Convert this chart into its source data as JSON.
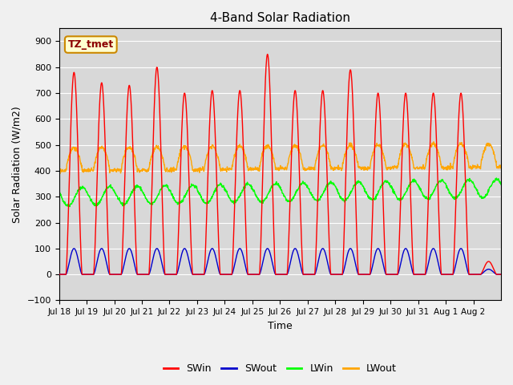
{
  "title": "4-Band Solar Radiation",
  "ylabel": "Solar Radiation (W/m2)",
  "xlabel": "Time",
  "annotation": "TZ_tmet",
  "ylim": [
    -100,
    950
  ],
  "yticks": [
    -100,
    0,
    100,
    200,
    300,
    400,
    500,
    600,
    700,
    800,
    900
  ],
  "xtick_labels": [
    "Jul 18",
    "Jul 19",
    "Jul 20",
    "Jul 21",
    "Jul 22",
    "Jul 23",
    "Jul 24",
    "Jul 25",
    "Jul 26",
    "Jul 27",
    "Jul 28",
    "Jul 29",
    "Jul 30",
    "Jul 31",
    "Aug 1",
    "Aug 2"
  ],
  "colors": {
    "SWin": "#ff0000",
    "SWout": "#0000cc",
    "LWin": "#00ff00",
    "LWout": "#ffa500"
  },
  "background_color": "#d8d8d8",
  "plot_bg_color": "#d8d8d8",
  "grid_color": "#ffffff",
  "n_days": 16,
  "SWin_peaks": [
    780,
    740,
    730,
    800,
    700,
    710,
    710,
    850,
    710,
    710,
    790,
    700,
    700,
    700,
    700,
    50
  ],
  "SWout_peaks": [
    100,
    100,
    100,
    100,
    100,
    100,
    100,
    100,
    100,
    100,
    100,
    100,
    100,
    100,
    100,
    20
  ],
  "LWin_base": 300,
  "LWout_base": 400,
  "LWin_amp": 35,
  "LWout_amp": 90
}
